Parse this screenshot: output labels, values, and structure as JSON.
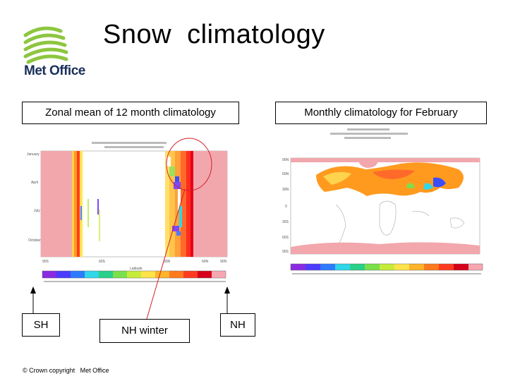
{
  "title": "Snow  climatology",
  "logo": {
    "text": "Met Office",
    "stripe_color": "#8dc63f",
    "text_color": "#1a2f5a"
  },
  "panels": {
    "left": {
      "label": "Zonal mean of 12 month climatology"
    },
    "right": {
      "label": "Monthly climatology for February"
    }
  },
  "annotations": {
    "sh": "SH",
    "nh_winter": "NH winter",
    "nh": "NH",
    "highlight_color": "#d61f26"
  },
  "footer": "© Crown copyright   Met Office"
}
